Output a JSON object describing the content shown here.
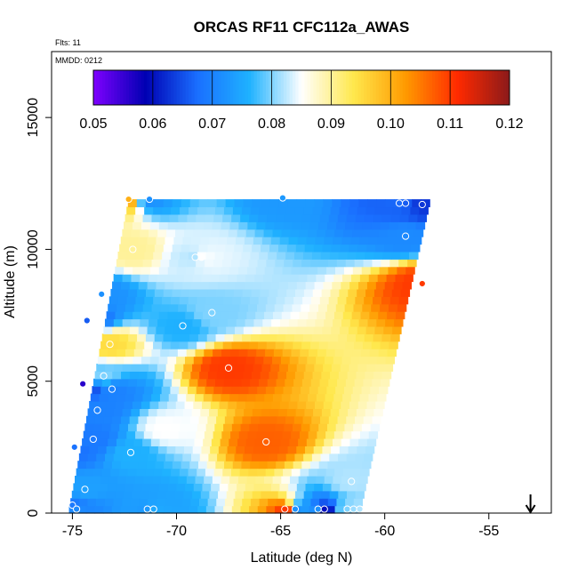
{
  "chart_data": {
    "type": "heatmap",
    "title": "ORCAS RF11 CFC112a_AWAS",
    "flights_note": "Flts: 11",
    "date_note": "MMDD: 0212",
    "xlabel": "Latitude (deg N)",
    "ylabel": "Altitude (m)",
    "xlim": [
      -76,
      -52
    ],
    "ylim": [
      0,
      17500
    ],
    "x_ticks": [
      -75,
      -70,
      -65,
      -60,
      -55
    ],
    "x_tick_labels": [
      "-75",
      "-70",
      "-65",
      "-60",
      "-55"
    ],
    "y_ticks": [
      0,
      5000,
      10000,
      15000
    ],
    "y_tick_labels": [
      "0",
      "5000",
      "10000",
      "15000"
    ],
    "colorbar": {
      "range": [
        0.05,
        0.12
      ],
      "ticks": [
        0.05,
        0.06,
        0.07,
        0.08,
        0.09,
        0.1,
        0.11,
        0.12
      ],
      "tick_labels": [
        "0.05",
        "0.06",
        "0.07",
        "0.08",
        "0.09",
        "0.10",
        "0.11",
        "0.12"
      ],
      "colors": [
        "#7f00ff",
        "#0000b3",
        "#1a6fff",
        "#1fb2ff",
        "#ffffff",
        "#ffe84d",
        "#ff9a00",
        "#ff2a00",
        "#8b1a1a"
      ]
    },
    "field_bounds": {
      "bottom_alt": 0,
      "top_alt": 11900,
      "left_lat_at_bottom": -75.2,
      "left_lat_at_top": -72.3,
      "right_lat_at_bottom": -61.2,
      "right_lat_at_top": -57.8
    },
    "field_grid": {
      "columns": 34,
      "rows": 42
    },
    "samples": [
      {
        "lat": -72.3,
        "alt": 11900,
        "value": 0.1
      },
      {
        "lat": -71.3,
        "alt": 11900,
        "value": 0.072
      },
      {
        "lat": -64.9,
        "alt": 11950,
        "value": 0.073
      },
      {
        "lat": -59.3,
        "alt": 11750,
        "value": 0.067
      },
      {
        "lat": -59.0,
        "alt": 11750,
        "value": 0.066
      },
      {
        "lat": -58.2,
        "alt": 11700,
        "value": 0.063
      },
      {
        "lat": -72.1,
        "alt": 10000,
        "value": 0.09
      },
      {
        "lat": -69.1,
        "alt": 9700,
        "value": 0.082
      },
      {
        "lat": -68.8,
        "alt": 9700,
        "value": 0.085
      },
      {
        "lat": -59.0,
        "alt": 10500,
        "value": 0.071
      },
      {
        "lat": -58.2,
        "alt": 8700,
        "value": 0.11
      },
      {
        "lat": -73.6,
        "alt": 8300,
        "value": 0.072
      },
      {
        "lat": -68.3,
        "alt": 7600,
        "value": 0.08
      },
      {
        "lat": -74.3,
        "alt": 7300,
        "value": 0.066
      },
      {
        "lat": -69.7,
        "alt": 7100,
        "value": 0.076
      },
      {
        "lat": -73.2,
        "alt": 6400,
        "value": 0.095
      },
      {
        "lat": -67.5,
        "alt": 5500,
        "value": 0.11
      },
      {
        "lat": -73.5,
        "alt": 5200,
        "value": 0.08
      },
      {
        "lat": -74.5,
        "alt": 4900,
        "value": 0.056
      },
      {
        "lat": -73.1,
        "alt": 4700,
        "value": 0.07
      },
      {
        "lat": -73.8,
        "alt": 3900,
        "value": 0.07
      },
      {
        "lat": -70.6,
        "alt": 3200,
        "value": 0.085
      },
      {
        "lat": -74.0,
        "alt": 2800,
        "value": 0.069
      },
      {
        "lat": -65.7,
        "alt": 2700,
        "value": 0.107
      },
      {
        "lat": -74.9,
        "alt": 2500,
        "value": 0.068
      },
      {
        "lat": -72.2,
        "alt": 2300,
        "value": 0.076
      },
      {
        "lat": -61.6,
        "alt": 1200,
        "value": 0.082
      },
      {
        "lat": -74.4,
        "alt": 900,
        "value": 0.074
      },
      {
        "lat": -75.0,
        "alt": 300,
        "value": 0.069
      },
      {
        "lat": -74.8,
        "alt": 150,
        "value": 0.071
      },
      {
        "lat": -71.4,
        "alt": 150,
        "value": 0.073
      },
      {
        "lat": -71.1,
        "alt": 150,
        "value": 0.075
      },
      {
        "lat": -64.8,
        "alt": 150,
        "value": 0.11
      },
      {
        "lat": -64.3,
        "alt": 150,
        "value": 0.072
      },
      {
        "lat": -63.2,
        "alt": 150,
        "value": 0.072
      },
      {
        "lat": -62.9,
        "alt": 150,
        "value": 0.06
      },
      {
        "lat": -61.8,
        "alt": 150,
        "value": 0.08
      },
      {
        "lat": -61.5,
        "alt": 150,
        "value": 0.081
      },
      {
        "lat": -61.2,
        "alt": 150,
        "value": 0.082
      }
    ],
    "arrow_marker": {
      "lat": -53.0,
      "direction": "down"
    }
  }
}
